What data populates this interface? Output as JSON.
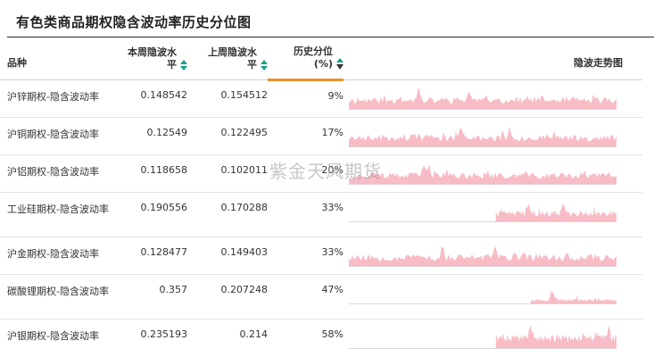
{
  "title": "有色类商品期权隐含波动率历史分位图",
  "watermark": "紫金天风期货",
  "headers": {
    "name": "品种",
    "cur_line1": "本周隐波水",
    "cur_line2": "平",
    "prev_line1": "上周隐波水",
    "prev_line2": "平",
    "hist_line1": "历史分位",
    "hist_line2": "(%)",
    "spark": "隐波走势图"
  },
  "colors": {
    "accent": "#e8912d",
    "sort_icon": "#1a9e8a",
    "sparkline": "#f8bcc6"
  },
  "icons": {
    "sort": "sort-arrows-icon",
    "sort_active": "sort-desc-icon"
  },
  "rows": [
    {
      "name": "沪锌期权-隐含波动率",
      "current": "0.148542",
      "previous": "0.154512",
      "percentile": "9%",
      "spark_start": 0.0,
      "spark_level": 0.35,
      "spark_spikes": [
        0.26,
        0.45
      ],
      "seed": 11
    },
    {
      "name": "沪铜期权-隐含波动率",
      "current": "0.12549",
      "previous": "0.122495",
      "percentile": "17%",
      "spark_start": 0.0,
      "spark_level": 0.35,
      "spark_spikes": [
        0.42,
        0.6
      ],
      "seed": 23
    },
    {
      "name": "沪铝期权-隐含波动率",
      "current": "0.118658",
      "previous": "0.102011",
      "percentile": "20%",
      "spark_start": 0.0,
      "spark_level": 0.33,
      "spark_spikes": [
        0.28,
        0.3
      ],
      "seed": 37
    },
    {
      "name": "工业硅期权-隐含波动率",
      "current": "0.190556",
      "previous": "0.170288",
      "percentile": "33%",
      "spark_start": 0.55,
      "spark_level": 0.3,
      "spark_spikes": [
        0.67,
        0.8
      ],
      "seed": 41
    },
    {
      "name": "沪金期权-隐含波动率",
      "current": "0.128477",
      "previous": "0.149403",
      "percentile": "33%",
      "spark_start": 0.0,
      "spark_level": 0.35,
      "spark_spikes": [
        0.35,
        0.55
      ],
      "seed": 53
    },
    {
      "name": "碳酸锂期权-隐含波动率",
      "current": "0.357",
      "previous": "0.207248",
      "percentile": "47%",
      "spark_start": 0.68,
      "spark_level": 0.12,
      "spark_spikes": [
        0.76
      ],
      "seed": 67
    },
    {
      "name": "沪银期权-隐含波动率",
      "current": "0.235193",
      "previous": "0.214",
      "percentile": "58%",
      "spark_start": 0.55,
      "spark_level": 0.4,
      "spark_spikes": [
        0.68,
        0.97
      ],
      "seed": 79
    }
  ]
}
